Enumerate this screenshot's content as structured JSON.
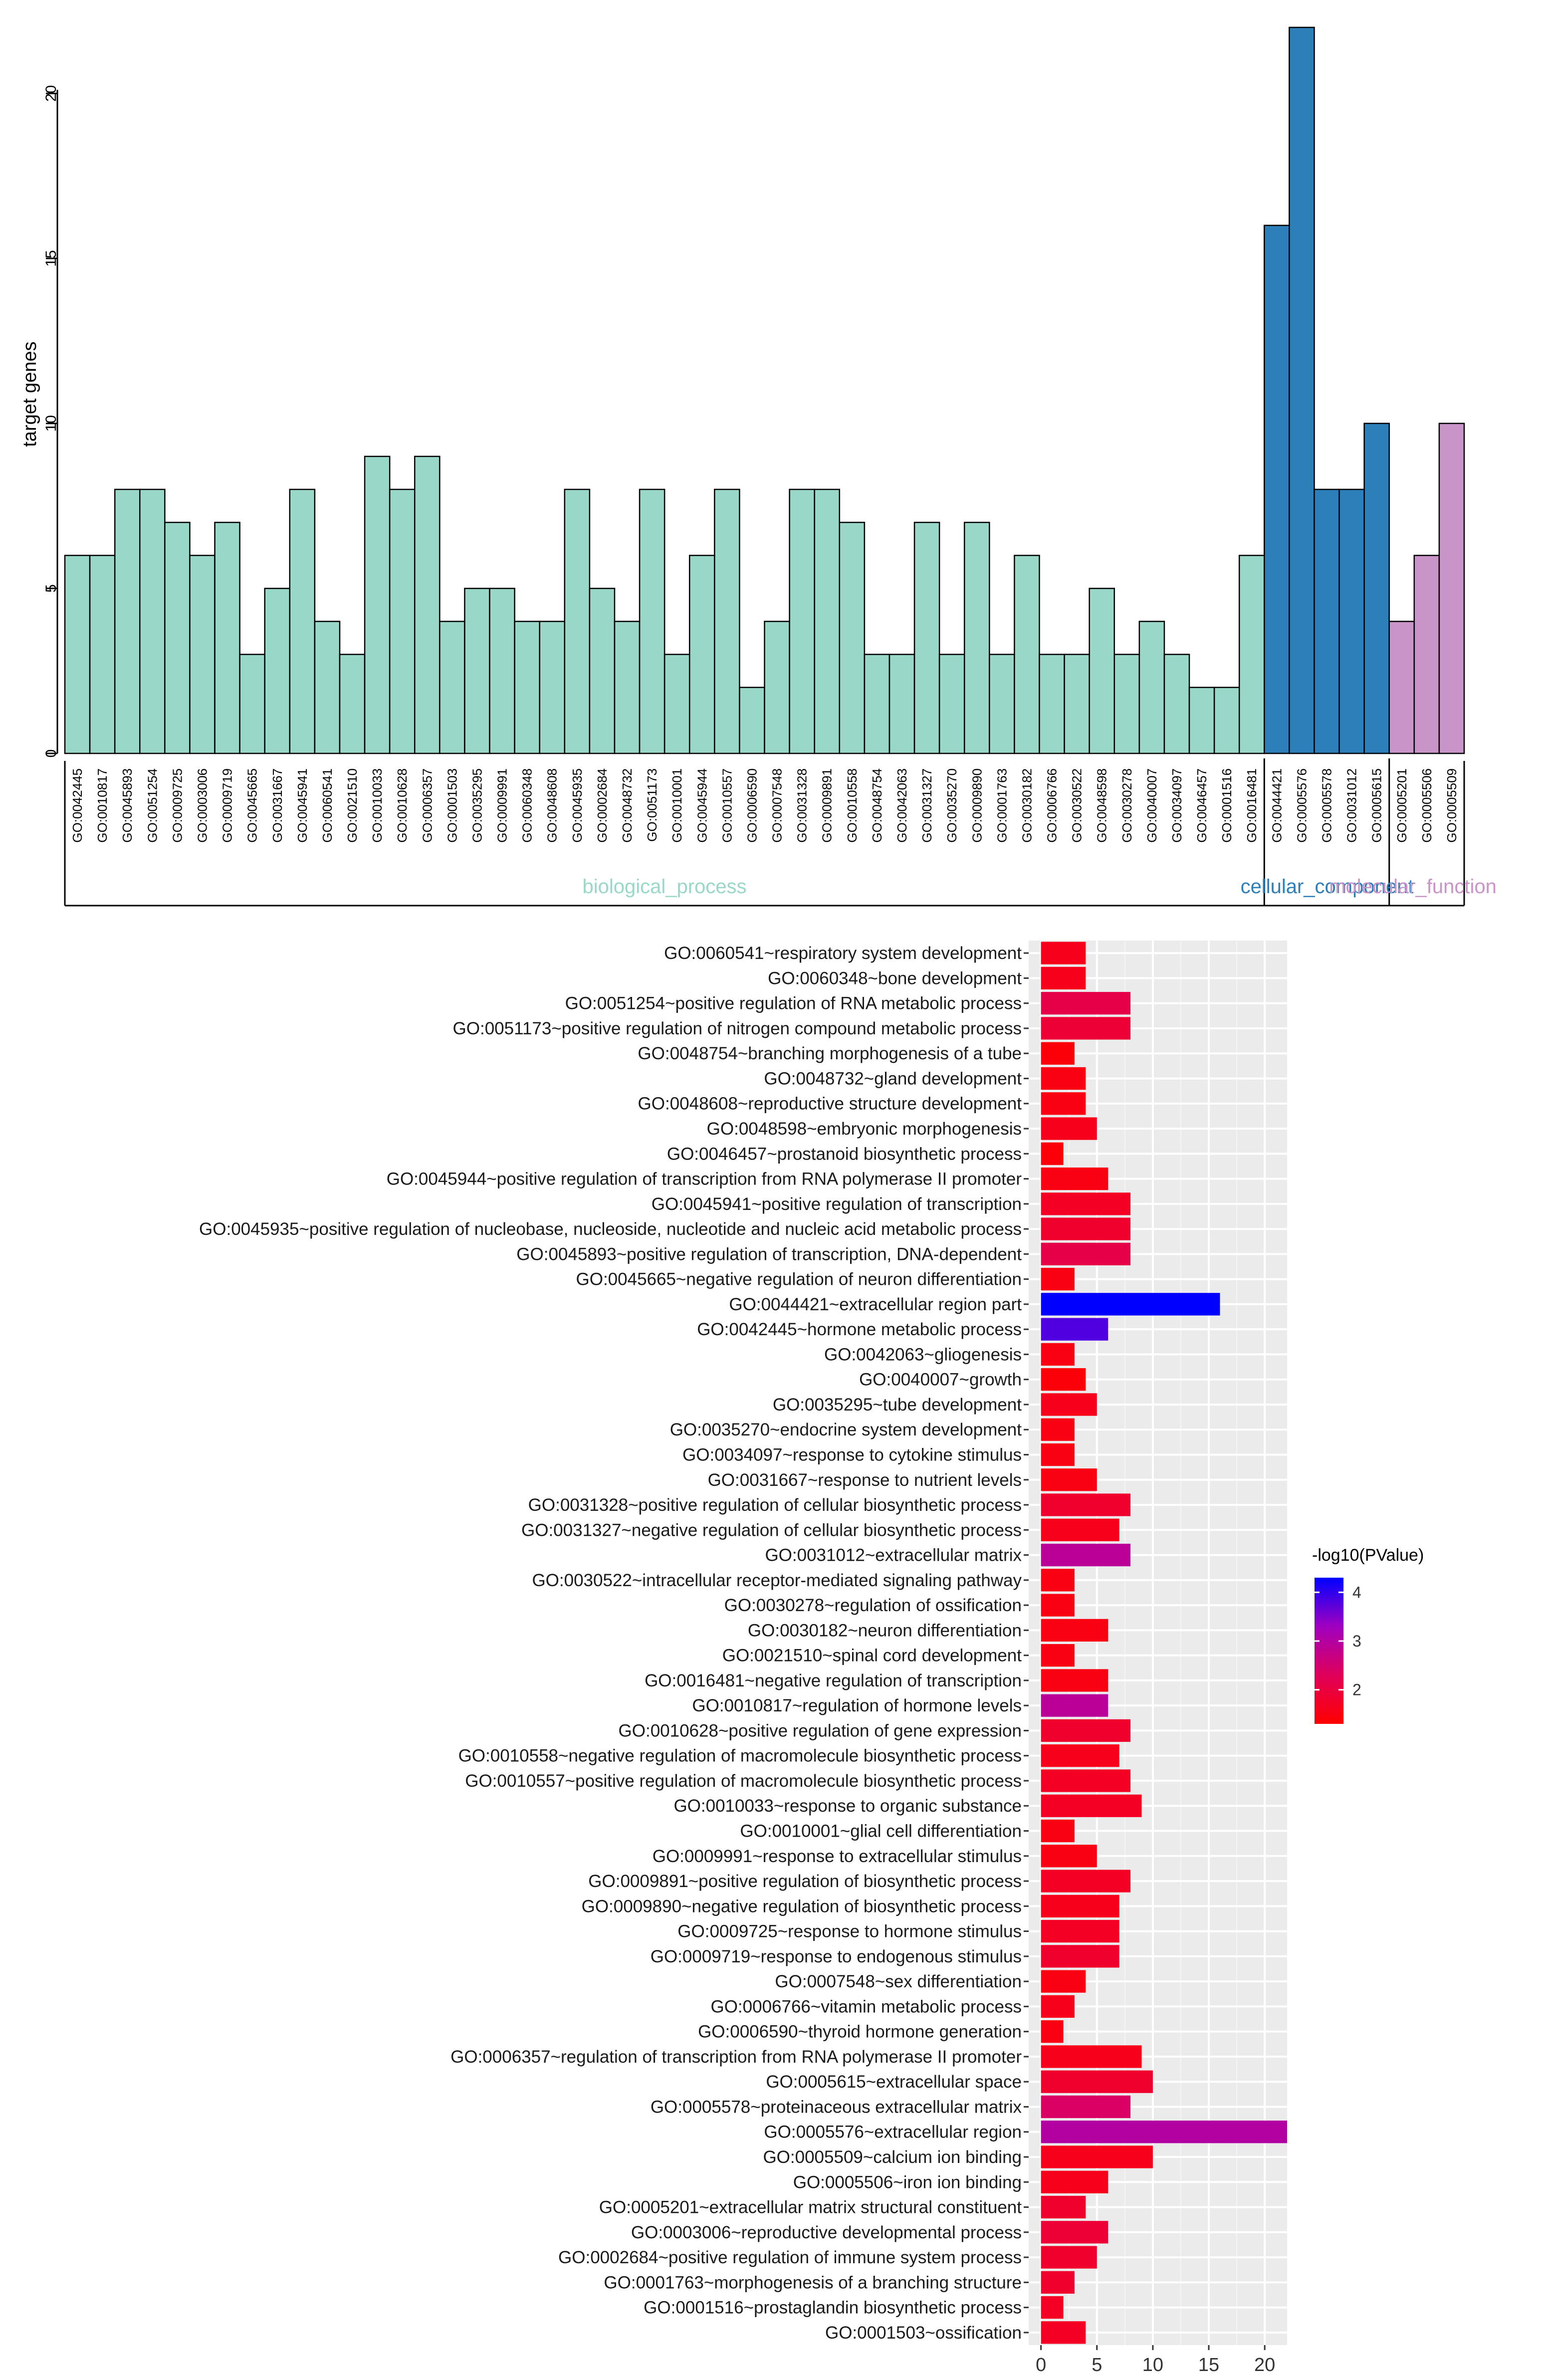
{
  "chart_data": [
    {
      "type": "bar",
      "ylabel": "target genes",
      "ylim": [
        0,
        22
      ],
      "yticks": [
        0,
        5,
        10,
        15,
        20
      ],
      "categories": [
        "GO:0042445",
        "GO:0010817",
        "GO:0045893",
        "GO:0051254",
        "GO:0009725",
        "GO:0003006",
        "GO:0009719",
        "GO:0045665",
        "GO:0031667",
        "GO:0045941",
        "GO:0060541",
        "GO:0021510",
        "GO:0010033",
        "GO:0010628",
        "GO:0006357",
        "GO:0001503",
        "GO:0035295",
        "GO:0009991",
        "GO:0060348",
        "GO:0048608",
        "GO:0045935",
        "GO:0002684",
        "GO:0048732",
        "GO:0051173",
        "GO:0010001",
        "GO:0045944",
        "GO:0010557",
        "GO:0006590",
        "GO:0007548",
        "GO:0031328",
        "GO:0009891",
        "GO:0010558",
        "GO:0048754",
        "GO:0042063",
        "GO:0031327",
        "GO:0035270",
        "GO:0009890",
        "GO:0001763",
        "GO:0030182",
        "GO:0006766",
        "GO:0030522",
        "GO:0048598",
        "GO:0030278",
        "GO:0040007",
        "GO:0034097",
        "GO:0046457",
        "GO:0001516",
        "GO:0016481",
        "GO:0044421",
        "GO:0005576",
        "GO:0005578",
        "GO:0031012",
        "GO:0005615",
        "GO:0005201",
        "GO:0005506",
        "GO:0005509"
      ],
      "values": [
        6,
        6,
        8,
        8,
        7,
        6,
        7,
        3,
        5,
        8,
        4,
        3,
        9,
        8,
        9,
        4,
        5,
        5,
        4,
        4,
        8,
        5,
        4,
        8,
        3,
        6,
        8,
        2,
        4,
        8,
        8,
        7,
        3,
        3,
        7,
        3,
        7,
        3,
        6,
        3,
        3,
        5,
        3,
        4,
        3,
        2,
        2,
        6,
        16,
        22,
        8,
        8,
        10,
        4,
        6,
        10
      ],
      "groups": [
        {
          "name": "biological_process",
          "count": 48,
          "color": "#99d8c9"
        },
        {
          "name": "cellular_component",
          "count": 5,
          "color": "#2c7fb8"
        },
        {
          "name": "molecular_function",
          "count": 3,
          "color": "#c994c7"
        }
      ]
    },
    {
      "type": "bar",
      "orientation": "horizontal",
      "xlim": [
        0,
        22
      ],
      "xticks": [
        0,
        5,
        10,
        15,
        20
      ],
      "legend": {
        "title": "-log10(PValue)",
        "ticks": [
          2,
          3,
          4
        ],
        "low_color": "#ff0000",
        "high_color": "#0000ff",
        "min": 1.3,
        "max": 4.3
      },
      "categories": [
        "GO:0060541~respiratory system development",
        "GO:0060348~bone development",
        "GO:0051254~positive regulation of RNA metabolic process",
        "GO:0051173~positive regulation of nitrogen compound metabolic process",
        "GO:0048754~branching morphogenesis of a tube",
        "GO:0048732~gland development",
        "GO:0048608~reproductive structure development",
        "GO:0048598~embryonic morphogenesis",
        "GO:0046457~prostanoid biosynthetic process",
        "GO:0045944~positive regulation of transcription from RNA polymerase II promoter",
        "GO:0045941~positive regulation of transcription",
        "GO:0045935~positive regulation of nucleobase, nucleoside, nucleotide and nucleic acid metabolic process",
        "GO:0045893~positive regulation of transcription, DNA-dependent",
        "GO:0045665~negative regulation of neuron differentiation",
        "GO:0044421~extracellular region part",
        "GO:0042445~hormone metabolic process",
        "GO:0042063~gliogenesis",
        "GO:0040007~growth",
        "GO:0035295~tube development",
        "GO:0035270~endocrine system development",
        "GO:0034097~response to cytokine stimulus",
        "GO:0031667~response to nutrient levels",
        "GO:0031328~positive regulation of cellular biosynthetic process",
        "GO:0031327~negative regulation of cellular biosynthetic process",
        "GO:0031012~extracellular matrix",
        "GO:0030522~intracellular receptor-mediated signaling pathway",
        "GO:0030278~regulation of ossification",
        "GO:0030182~neuron differentiation",
        "GO:0021510~spinal cord development",
        "GO:0016481~negative regulation of transcription",
        "GO:0010817~regulation of hormone levels",
        "GO:0010628~positive regulation of gene expression",
        "GO:0010558~negative regulation of macromolecule biosynthetic process",
        "GO:0010557~positive regulation of macromolecule biosynthetic process",
        "GO:0010033~response to organic substance",
        "GO:0010001~glial cell differentiation",
        "GO:0009991~response to extracellular stimulus",
        "GO:0009891~positive regulation of biosynthetic process",
        "GO:0009890~negative regulation of biosynthetic process",
        "GO:0009725~response to hormone stimulus",
        "GO:0009719~response to endogenous stimulus",
        "GO:0007548~sex differentiation",
        "GO:0006766~vitamin metabolic process",
        "GO:0006590~thyroid hormone generation",
        "GO:0006357~regulation of transcription from RNA polymerase II promoter",
        "GO:0005615~extracellular space",
        "GO:0005578~proteinaceous extracellular matrix",
        "GO:0005576~extracellular region",
        "GO:0005509~calcium ion binding",
        "GO:0005506~iron ion binding",
        "GO:0005201~extracellular matrix structural constituent",
        "GO:0003006~reproductive developmental process",
        "GO:0002684~positive regulation of immune system process",
        "GO:0001763~morphogenesis of a branching structure",
        "GO:0001516~prostaglandin biosynthetic process",
        "GO:0001503~ossification"
      ],
      "values": [
        4,
        4,
        8,
        8,
        3,
        4,
        4,
        5,
        2,
        6,
        8,
        8,
        8,
        3,
        16,
        6,
        3,
        4,
        5,
        3,
        3,
        5,
        8,
        7,
        8,
        3,
        3,
        6,
        3,
        6,
        6,
        8,
        7,
        8,
        9,
        3,
        5,
        8,
        7,
        7,
        7,
        4,
        3,
        2,
        9,
        10,
        8,
        22,
        10,
        6,
        4,
        6,
        5,
        3,
        2,
        4
      ],
      "neg_log10_pvalue": [
        1.6,
        1.6,
        2.1,
        1.9,
        1.4,
        1.5,
        1.5,
        1.6,
        1.4,
        1.5,
        1.7,
        1.8,
        2.1,
        1.5,
        4.3,
        3.8,
        1.5,
        1.4,
        1.6,
        1.5,
        1.5,
        1.5,
        1.8,
        1.6,
        2.9,
        1.5,
        1.5,
        1.5,
        1.5,
        1.5,
        2.9,
        1.8,
        1.6,
        1.7,
        1.7,
        1.5,
        1.5,
        1.7,
        1.6,
        1.7,
        1.8,
        1.5,
        1.6,
        1.5,
        1.6,
        1.8,
        2.4,
        3.0,
        1.6,
        1.6,
        1.8,
        1.9,
        1.8,
        1.8,
        1.7,
        1.7
      ]
    }
  ]
}
